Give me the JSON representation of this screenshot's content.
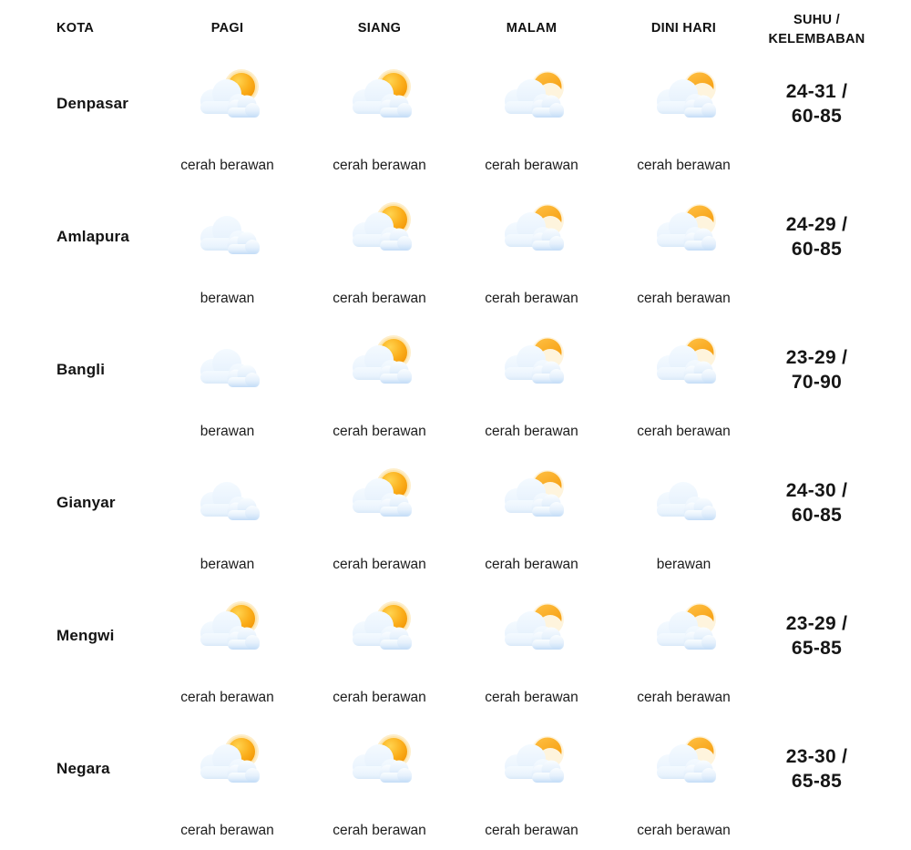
{
  "table": {
    "columns": [
      {
        "id": "kota",
        "label": "KOTA"
      },
      {
        "id": "pagi",
        "label": "PAGI"
      },
      {
        "id": "siang",
        "label": "SIANG"
      },
      {
        "id": "malam",
        "label": "MALAM"
      },
      {
        "id": "dini-hari",
        "label": "DINI HARI"
      },
      {
        "id": "suhu-kelembaban",
        "label": "SUHU / KELEMBABAN",
        "label_line1": "SUHU /",
        "label_line2": "KELEMBABAN"
      }
    ],
    "rows": [
      {
        "city": "Denpasar",
        "forecasts": [
          {
            "period": "pagi",
            "icon": "sun-cloud",
            "label": "cerah berawan"
          },
          {
            "period": "siang",
            "icon": "sun-cloud",
            "label": "cerah berawan"
          },
          {
            "period": "malam",
            "icon": "moon-cloud",
            "label": "cerah berawan"
          },
          {
            "period": "dini-hari",
            "icon": "moon-cloud",
            "label": "cerah berawan"
          }
        ],
        "suhu_kelembaban": {
          "line1": "24-31 /",
          "line2": "60-85"
        }
      },
      {
        "city": "Amlapura",
        "forecasts": [
          {
            "period": "pagi",
            "icon": "cloud",
            "label": "berawan"
          },
          {
            "period": "siang",
            "icon": "sun-cloud",
            "label": "cerah berawan"
          },
          {
            "period": "malam",
            "icon": "moon-cloud",
            "label": "cerah berawan"
          },
          {
            "period": "dini-hari",
            "icon": "moon-cloud",
            "label": "cerah berawan"
          }
        ],
        "suhu_kelembaban": {
          "line1": "24-29 /",
          "line2": "60-85"
        }
      },
      {
        "city": "Bangli",
        "forecasts": [
          {
            "period": "pagi",
            "icon": "cloud",
            "label": "berawan"
          },
          {
            "period": "siang",
            "icon": "sun-cloud",
            "label": "cerah berawan"
          },
          {
            "period": "malam",
            "icon": "moon-cloud",
            "label": "cerah berawan"
          },
          {
            "period": "dini-hari",
            "icon": "moon-cloud",
            "label": "cerah berawan"
          }
        ],
        "suhu_kelembaban": {
          "line1": "23-29 /",
          "line2": "70-90"
        }
      },
      {
        "city": "Gianyar",
        "forecasts": [
          {
            "period": "pagi",
            "icon": "cloud",
            "label": "berawan"
          },
          {
            "period": "siang",
            "icon": "sun-cloud",
            "label": "cerah berawan"
          },
          {
            "period": "malam",
            "icon": "moon-cloud",
            "label": "cerah berawan"
          },
          {
            "period": "dini-hari",
            "icon": "cloud",
            "label": "berawan"
          }
        ],
        "suhu_kelembaban": {
          "line1": "24-30 /",
          "line2": "60-85"
        }
      },
      {
        "city": "Mengwi",
        "forecasts": [
          {
            "period": "pagi",
            "icon": "sun-cloud",
            "label": "cerah berawan"
          },
          {
            "period": "siang",
            "icon": "sun-cloud",
            "label": "cerah berawan"
          },
          {
            "period": "malam",
            "icon": "moon-cloud",
            "label": "cerah berawan"
          },
          {
            "period": "dini-hari",
            "icon": "moon-cloud",
            "label": "cerah berawan"
          }
        ],
        "suhu_kelembaban": {
          "line1": "23-29 /",
          "line2": "65-85"
        }
      },
      {
        "city": "Negara",
        "forecasts": [
          {
            "period": "pagi",
            "icon": "sun-cloud",
            "label": "cerah berawan"
          },
          {
            "period": "siang",
            "icon": "sun-cloud",
            "label": "cerah berawan"
          },
          {
            "period": "malam",
            "icon": "moon-cloud",
            "label": "cerah berawan"
          },
          {
            "period": "dini-hari",
            "icon": "moon-cloud",
            "label": "cerah berawan"
          }
        ],
        "suhu_kelembaban": {
          "line1": "23-30 /",
          "line2": "65-85"
        }
      }
    ]
  },
  "icons": {
    "sun-cloud": "sun behind clouds (cerah berawan - day)",
    "moon-cloud": "crescent moon behind clouds (cerah berawan - night)",
    "cloud": "clouds only (berawan)"
  },
  "colors": {
    "sun": "#FBAF1C",
    "moon": "#F9A825",
    "cloud_light": "#EEF6FE",
    "cloud_shade": "#C3DCF7",
    "text": "#1a1a1a",
    "background": "#ffffff"
  }
}
